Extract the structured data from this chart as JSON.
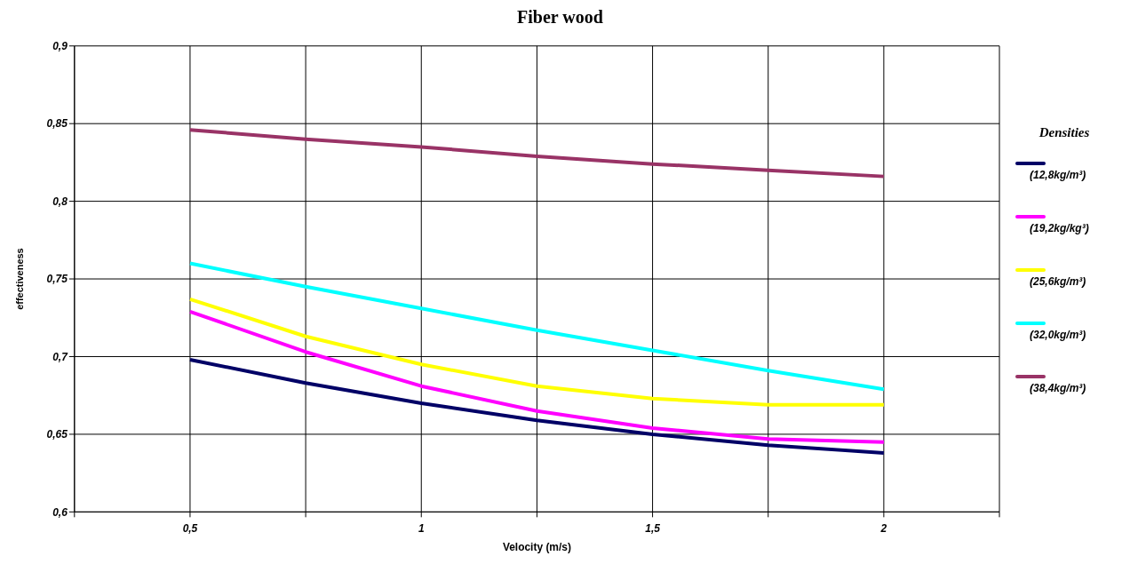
{
  "chart_data": {
    "type": "line",
    "title": "Fiber wood",
    "xlabel": "Velocity (m/s)",
    "ylabel": "effectiveness",
    "legend_title": "Densities",
    "legend": "right",
    "marker": "none",
    "grid": true,
    "x": [
      0.5,
      0.75,
      1,
      1.25,
      1.5,
      1.75,
      2
    ],
    "xlim": [
      0.25,
      2.25
    ],
    "xticks": [
      {
        "value": 0.25,
        "label": null
      },
      {
        "value": 0.5,
        "label": "0,5"
      },
      {
        "value": 0.75,
        "label": null
      },
      {
        "value": 1,
        "label": "1"
      },
      {
        "value": 1.25,
        "label": null
      },
      {
        "value": 1.5,
        "label": "1,5"
      },
      {
        "value": 1.75,
        "label": null
      },
      {
        "value": 2,
        "label": "2"
      },
      {
        "value": 2.25,
        "label": null
      }
    ],
    "ylim": [
      0.6,
      0.9
    ],
    "yticks": [
      {
        "value": 0.6,
        "label": "0,6"
      },
      {
        "value": 0.65,
        "label": "0,65"
      },
      {
        "value": 0.7,
        "label": "0,7"
      },
      {
        "value": 0.75,
        "label": "0,75"
      },
      {
        "value": 0.8,
        "label": "0,8"
      },
      {
        "value": 0.85,
        "label": "0,85"
      },
      {
        "value": 0.9,
        "label": "0,9"
      }
    ],
    "series": [
      {
        "name": "(12,8kg/m³)",
        "color": "#000066",
        "values": [
          0.698,
          0.683,
          0.67,
          0.659,
          0.65,
          0.643,
          0.638
        ]
      },
      {
        "name": "(19,2kg/kg³)",
        "color": "#ff00ff",
        "values": [
          0.729,
          0.703,
          0.681,
          0.665,
          0.654,
          0.647,
          0.645
        ]
      },
      {
        "name": "(25,6kg/m³)",
        "color": "#ffff00",
        "values": [
          0.737,
          0.713,
          0.695,
          0.681,
          0.673,
          0.669,
          0.669
        ]
      },
      {
        "name": "(32,0kg/m³)",
        "color": "#00ffff",
        "values": [
          0.76,
          0.745,
          0.731,
          0.717,
          0.704,
          0.691,
          0.679
        ]
      },
      {
        "name": "(38,4kg/m³)",
        "color": "#993366",
        "values": [
          0.846,
          0.84,
          0.835,
          0.829,
          0.824,
          0.82,
          0.816
        ]
      }
    ]
  }
}
